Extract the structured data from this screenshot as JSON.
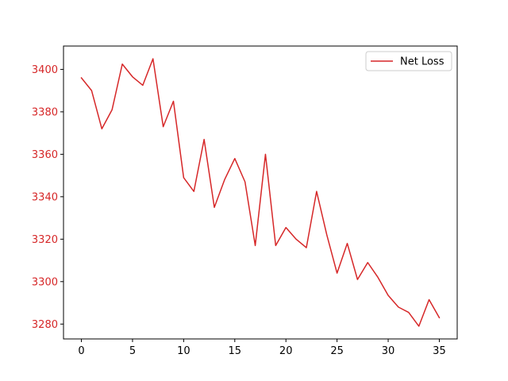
{
  "chart_data": {
    "type": "line",
    "title": "",
    "xlabel": "",
    "ylabel": "",
    "xlim": [
      -1.75,
      36.75
    ],
    "ylim": [
      3273,
      3411
    ],
    "grid": false,
    "legend_position": "top-right",
    "x_ticks": [
      0,
      5,
      10,
      15,
      20,
      25,
      30,
      35
    ],
    "x_tick_labels": [
      "0",
      "5",
      "10",
      "15",
      "20",
      "25",
      "30",
      "35"
    ],
    "y_ticks": [
      3280,
      3300,
      3320,
      3340,
      3360,
      3380,
      3400
    ],
    "y_tick_labels": [
      "3280",
      "3300",
      "3320",
      "3340",
      "3360",
      "3380",
      "3400"
    ],
    "y_tick_label_color": "#d62728",
    "series": [
      {
        "name": "Net Loss",
        "color": "#d62728",
        "x": [
          0,
          1,
          2,
          3,
          4,
          5,
          6,
          7,
          8,
          9,
          10,
          11,
          12,
          13,
          14,
          15,
          16,
          17,
          18,
          19,
          20,
          21,
          22,
          23,
          24,
          25,
          26,
          27,
          28,
          29,
          30,
          31,
          32,
          33,
          34,
          35
        ],
        "y": [
          3396,
          3390,
          3372,
          3381,
          3402.5,
          3396.5,
          3392.5,
          3405,
          3373,
          3385,
          3349,
          3342.5,
          3367,
          3335,
          3348,
          3358,
          3347,
          3317,
          3360,
          3317,
          3325.5,
          3320,
          3316,
          3342.5,
          3322,
          3304,
          3318,
          3301,
          3309,
          3302,
          3293.5,
          3288,
          3285.5,
          3279,
          3291.5,
          3283
        ]
      }
    ]
  }
}
